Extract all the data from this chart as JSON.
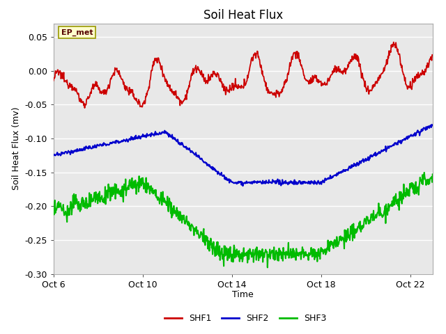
{
  "title": "Soil Heat Flux",
  "ylabel": "Soil Heat Flux (mv)",
  "xlabel": "Time",
  "annotation": "EP_met",
  "ylim": [
    -0.3,
    0.07
  ],
  "yticks": [
    0.05,
    0.0,
    -0.05,
    -0.1,
    -0.15,
    -0.2,
    -0.25,
    -0.3
  ],
  "xtick_labels": [
    "Oct 6",
    "Oct 10",
    "Oct 14",
    "Oct 18",
    "Oct 22"
  ],
  "xtick_positions": [
    0,
    4,
    8,
    12,
    16
  ],
  "xlim": [
    0,
    17
  ],
  "legend_labels": [
    "SHF1",
    "SHF2",
    "SHF3"
  ],
  "line_colors": [
    "#cc0000",
    "#0000cc",
    "#00bb00"
  ],
  "fig_bg_color": "#ffffff",
  "plot_bg_color": "#e8e8e8",
  "grid_color": "#ffffff",
  "title_fontsize": 12,
  "label_fontsize": 9,
  "tick_fontsize": 9
}
